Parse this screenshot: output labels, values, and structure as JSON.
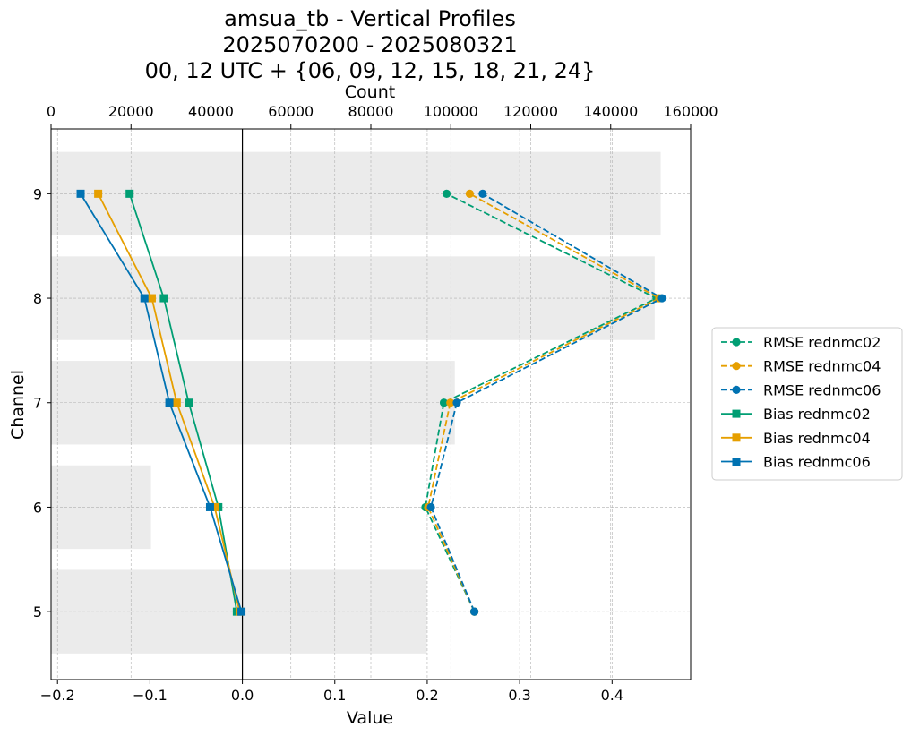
{
  "chart_data": {
    "type": "line",
    "title_lines": [
      "amsua_tb - Vertical Profiles",
      "2025070200 - 2025080321",
      "00, 12 UTC + {06, 09, 12, 15, 18, 21, 24}"
    ],
    "xlabel": "Value",
    "ylabel": "Channel",
    "top_xlabel": "Count",
    "xlim": [
      -0.207,
      0.485
    ],
    "ylim": [
      4.35,
      9.62
    ],
    "count_xlim": [
      0,
      160000
    ],
    "x_ticks": [
      -0.2,
      -0.1,
      0.0,
      0.1,
      0.2,
      0.3,
      0.4
    ],
    "x_tick_labels": [
      "−0.2",
      "−0.1",
      "0.0",
      "0.1",
      "0.2",
      "0.3",
      "0.4"
    ],
    "top_ticks": [
      0,
      20000,
      40000,
      60000,
      80000,
      100000,
      120000,
      140000,
      160000
    ],
    "top_tick_labels": [
      "0",
      "20000",
      "40000",
      "60000",
      "80000",
      "100000",
      "120000",
      "140000",
      "160000"
    ],
    "channels": [
      5,
      6,
      7,
      8,
      9
    ],
    "channel_labels": [
      "5",
      "6",
      "7",
      "8",
      "9"
    ],
    "counts": [
      94000,
      25000,
      101000,
      151000,
      152500
    ],
    "grid": true,
    "zero_line": 0.0,
    "legend_position": "right, outside",
    "series": [
      {
        "name": "RMSE rednmc02",
        "color": "#009E73",
        "style": "dashed",
        "marker": "circle",
        "values": [
          0.251,
          0.198,
          0.218,
          0.448,
          0.221
        ]
      },
      {
        "name": "RMSE rednmc04",
        "color": "#E69F00",
        "style": "dashed",
        "marker": "circle",
        "values": [
          0.251,
          0.201,
          0.225,
          0.451,
          0.246
        ]
      },
      {
        "name": "RMSE rednmc06",
        "color": "#0072B2",
        "style": "dashed",
        "marker": "circle",
        "values": [
          0.251,
          0.204,
          0.232,
          0.454,
          0.26
        ]
      },
      {
        "name": "Bias rednmc02",
        "color": "#009E73",
        "style": "solid",
        "marker": "square",
        "values": [
          -0.006,
          -0.026,
          -0.058,
          -0.085,
          -0.122
        ]
      },
      {
        "name": "Bias rednmc04",
        "color": "#E69F00",
        "style": "solid",
        "marker": "square",
        "values": [
          -0.003,
          -0.03,
          -0.071,
          -0.098,
          -0.156
        ]
      },
      {
        "name": "Bias rednmc06",
        "color": "#0072B2",
        "style": "solid",
        "marker": "square",
        "values": [
          -0.001,
          -0.035,
          -0.079,
          -0.106,
          -0.175
        ]
      }
    ]
  }
}
